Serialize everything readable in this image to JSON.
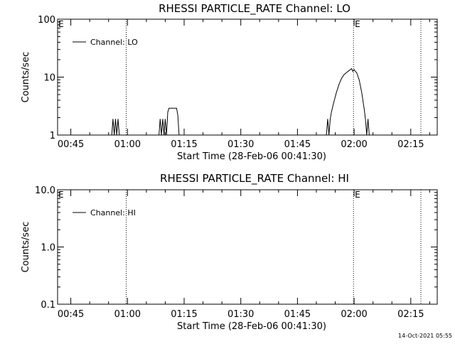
{
  "chart_data": [
    {
      "type": "line",
      "title": "RHESSI PARTICLE_RATE Channel: LO",
      "xlabel": "Start Time (28-Feb-06 00:41:30)",
      "ylabel": "Counts/sec",
      "yscale": "log",
      "ylim": [
        1,
        100
      ],
      "yticks": [
        1,
        10,
        100
      ],
      "ytick_labels": [
        "1",
        "10",
        "100"
      ],
      "xlim": [
        "00:41:30",
        "02:22:00"
      ],
      "xticks": [
        "00:45",
        "01:00",
        "01:15",
        "01:30",
        "01:45",
        "02:00",
        "02:15"
      ],
      "grid": false,
      "legend_position": "top-left",
      "vlines": [
        "00:59:40",
        "01:59:50",
        "02:17:40"
      ],
      "flags": [
        {
          "label": "E",
          "x": "00:41:30"
        },
        {
          "label": "E",
          "x": "02:00:00"
        }
      ],
      "series": [
        {
          "name": "Channel: LO",
          "x": [
            "00:55:50",
            "00:56:10",
            "00:56:30",
            "00:56:50",
            "00:57:10",
            "00:57:30",
            "00:57:50",
            "01:08:20",
            "01:08:40",
            "01:09:00",
            "01:09:20",
            "01:09:40",
            "01:10:00",
            "01:10:20",
            "01:10:40",
            "01:11:00",
            "01:11:20",
            "01:11:40",
            "01:12:20",
            "01:13:00",
            "01:13:20",
            "01:13:40",
            "01:52:40",
            "01:53:00",
            "01:53:20",
            "01:53:40",
            "01:54:00",
            "01:54:40",
            "01:55:20",
            "01:56:00",
            "01:56:40",
            "01:57:20",
            "01:58:00",
            "01:58:40",
            "01:59:20",
            "01:59:40",
            "02:00:00",
            "02:00:20",
            "02:00:40",
            "02:01:20",
            "02:02:00",
            "02:02:40",
            "02:03:00",
            "02:03:20",
            "02:03:40",
            "02:04:00"
          ],
          "y": [
            1,
            1.9,
            1,
            1.9,
            1,
            1.9,
            1,
            1,
            1.9,
            1,
            1.9,
            1,
            1.9,
            1,
            2.5,
            2.9,
            2.9,
            2.9,
            2.9,
            2.9,
            2.2,
            1,
            1,
            1.9,
            1,
            1.9,
            2.5,
            3.8,
            5.5,
            7.5,
            9.5,
            11,
            12,
            13,
            14,
            12.5,
            13.5,
            12.5,
            12,
            9,
            5.5,
            2.8,
            1.9,
            1,
            1.9,
            1
          ]
        }
      ]
    },
    {
      "type": "line",
      "title": "RHESSI PARTICLE_RATE Channel: HI",
      "xlabel": "Start Time (28-Feb-06 00:41:30)",
      "ylabel": "Counts/sec",
      "yscale": "log",
      "ylim": [
        0.1,
        10
      ],
      "yticks": [
        0.1,
        1,
        10
      ],
      "ytick_labels": [
        "0.1",
        "1.0",
        "10.0"
      ],
      "xlim": [
        "00:41:30",
        "02:22:00"
      ],
      "xticks": [
        "00:45",
        "01:00",
        "01:15",
        "01:30",
        "01:45",
        "02:00",
        "02:15"
      ],
      "grid": false,
      "legend_position": "top-left",
      "vlines": [
        "00:59:40",
        "01:59:50",
        "02:17:40"
      ],
      "flags": [
        {
          "label": "E",
          "x": "00:41:30"
        },
        {
          "label": "E",
          "x": "02:00:00"
        }
      ],
      "series": [
        {
          "name": "Channel: HI",
          "x": [],
          "y": []
        }
      ]
    }
  ],
  "footer": {
    "timestamp": "14-Oct-2021 05:55"
  }
}
